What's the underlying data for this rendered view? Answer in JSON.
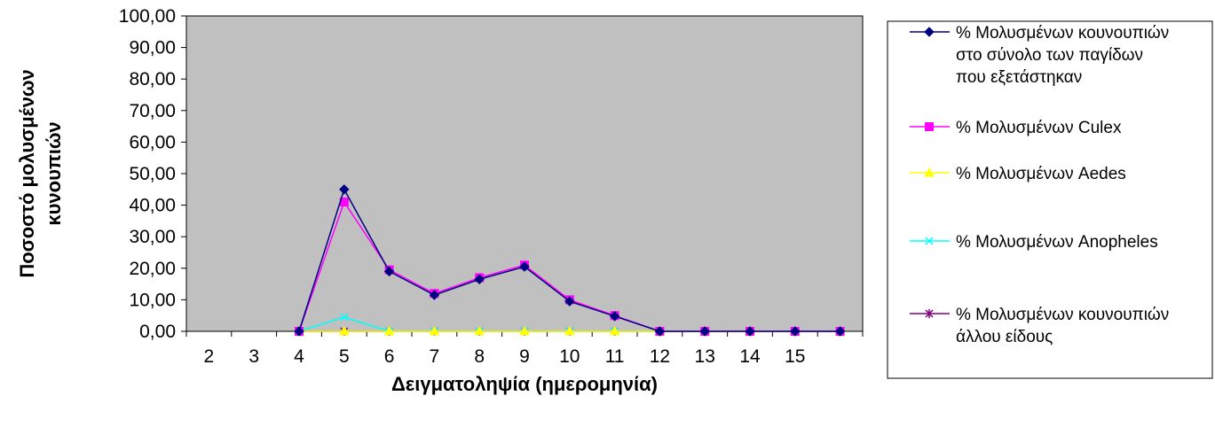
{
  "chart_data": {
    "type": "line",
    "title": "",
    "xlabel": "Δειγματοληψία (ημερομηνία)",
    "ylabel_lines": [
      "Ποσοστό μολυσμένων",
      "κυνουπιών"
    ],
    "ylim": [
      0,
      100
    ],
    "y_ticks": [
      "0,00",
      "10,00",
      "20,00",
      "30,00",
      "40,00",
      "50,00",
      "60,00",
      "70,00",
      "80,00",
      "90,00",
      "100,00"
    ],
    "x_tick_labels": [
      "2",
      "3",
      "4",
      "5",
      "6",
      "7",
      "8",
      "9",
      "10",
      "11",
      "12",
      "13",
      "14",
      "15"
    ],
    "categories": [
      "2",
      "3",
      "4",
      "5",
      "6",
      "7",
      "8",
      "9",
      "10",
      "11",
      "12",
      "13",
      "14",
      "15",
      ""
    ],
    "plot_background": "#c0c0c0",
    "legend_position": "right",
    "series": [
      {
        "name_lines": [
          "% Μολυσμένων κουνουπιών",
          "στο σύνολο των παγίδων",
          "που εξετάστηκαν"
        ],
        "color": "#000080",
        "marker": "diamond",
        "values": [
          null,
          null,
          0.0,
          45.0,
          19.0,
          11.5,
          16.5,
          20.5,
          9.5,
          4.8,
          0.0,
          0.0,
          0.0,
          0.0,
          0.0
        ]
      },
      {
        "name_lines": [
          "% Μολυσμένων Culex"
        ],
        "color": "#ff00ff",
        "marker": "square",
        "values": [
          null,
          null,
          0.0,
          41.0,
          19.5,
          12.0,
          17.0,
          21.0,
          10.0,
          5.0,
          0.0,
          0.0,
          0.0,
          0.0,
          0.0
        ]
      },
      {
        "name_lines": [
          "% Μολυσμένων Aedes"
        ],
        "color": "#ffff00",
        "marker": "triangle",
        "values": [
          null,
          null,
          0.0,
          0.0,
          0.0,
          0.0,
          0.0,
          0.0,
          0.0,
          0.0,
          0.0,
          0.0,
          0.0,
          0.0,
          0.0
        ]
      },
      {
        "name_lines": [
          "% Μολυσμένων Anopheles"
        ],
        "color": "#00ffff",
        "marker": "x",
        "values": [
          null,
          null,
          0.0,
          4.5,
          0.0,
          0.0,
          0.0,
          0.0,
          0.0,
          0.0,
          0.0,
          0.0,
          0.0,
          0.0,
          0.0
        ]
      },
      {
        "name_lines": [
          "% Μολυσμένων κουνουπιών",
          "άλλου είδους"
        ],
        "color": "#800080",
        "marker": "star",
        "values": [
          null,
          null,
          0.0,
          0.0,
          0.0,
          0.0,
          0.0,
          0.0,
          0.0,
          0.0,
          0.0,
          0.0,
          0.0,
          0.0,
          0.0
        ]
      }
    ]
  }
}
